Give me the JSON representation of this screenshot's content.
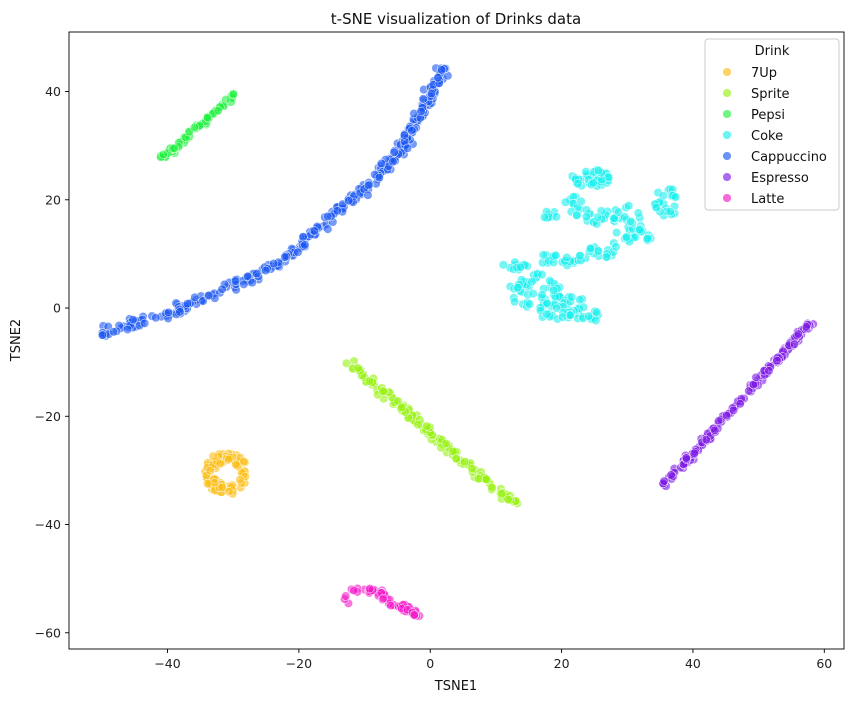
{
  "chart_data": {
    "type": "scatter",
    "title": "t-SNE visualization of Drinks data",
    "xlabel": "TSNE1",
    "ylabel": "TSNE2",
    "xlim": [
      -55,
      63
    ],
    "ylim": [
      -63,
      51
    ],
    "xticks": [
      -40,
      -20,
      0,
      20,
      40,
      60
    ],
    "yticks": [
      -60,
      -40,
      -20,
      0,
      20,
      40
    ],
    "grid": false,
    "legend": {
      "title": "Drink",
      "placement": "top-right"
    },
    "series": [
      {
        "name": "7Up",
        "color": "#fbbc13",
        "shape": "ring",
        "center": [
          -31,
          -30.5
        ],
        "radius": [
          3.2,
          3.8
        ],
        "count": 90
      },
      {
        "name": "Sprite",
        "color": "#96f10f",
        "shape": "line",
        "from": [
          -12,
          -10.5
        ],
        "to": [
          13,
          -36.5
        ],
        "spread": 0.7,
        "count": 150
      },
      {
        "name": "Pepsi",
        "color": "#1ef23d",
        "shape": "line",
        "from": [
          -41,
          27.5
        ],
        "to": [
          -29.5,
          39.5
        ],
        "spread": 0.5,
        "count": 70
      },
      {
        "name": "Coke",
        "color": "#19f0ee",
        "shape": "blobs",
        "clusters": [
          {
            "center": [
              24.5,
              24
            ],
            "rx": 3.0,
            "ry": 1.6,
            "count": 35
          },
          {
            "center": [
              22,
              19
            ],
            "rx": 1.6,
            "ry": 2.2,
            "count": 12
          },
          {
            "center": [
              18,
              17
            ],
            "rx": 1.8,
            "ry": 1.0,
            "count": 10
          },
          {
            "center": [
              26,
              17
            ],
            "rx": 3.2,
            "ry": 1.6,
            "count": 20
          },
          {
            "center": [
              30,
              15
            ],
            "rx": 2.4,
            "ry": 4.0,
            "count": 20
          },
          {
            "center": [
              36,
              19.5
            ],
            "rx": 1.8,
            "ry": 2.8,
            "count": 24
          },
          {
            "center": [
              32,
              13
            ],
            "rx": 2.2,
            "ry": 1.6,
            "count": 14
          },
          {
            "center": [
              13,
              8
            ],
            "rx": 2.0,
            "ry": 1.0,
            "count": 12
          },
          {
            "center": [
              20,
              9
            ],
            "rx": 4.0,
            "ry": 1.5,
            "count": 24
          },
          {
            "center": [
              26,
              11
            ],
            "rx": 2.6,
            "ry": 1.8,
            "count": 16
          },
          {
            "center": [
              16,
              3
            ],
            "rx": 4.0,
            "ry": 3.6,
            "count": 55
          },
          {
            "center": [
              22,
              0
            ],
            "rx": 2.6,
            "ry": 2.2,
            "count": 20
          },
          {
            "center": [
              24,
              -1.5
            ],
            "rx": 1.8,
            "ry": 1.2,
            "count": 10
          },
          {
            "center": [
              19,
              -1
            ],
            "rx": 2.5,
            "ry": 1.2,
            "count": 14
          }
        ]
      },
      {
        "name": "Cappuccino",
        "color": "#1b57f2",
        "shape": "curve",
        "path": [
          [
            -50,
            -4.5
          ],
          [
            -40,
            -1
          ],
          [
            -30,
            4
          ],
          [
            -22,
            9
          ],
          [
            -16,
            16
          ],
          [
            -9,
            23
          ],
          [
            -4,
            30
          ],
          [
            -1,
            37
          ],
          [
            2,
            44.5
          ]
        ],
        "spread": 0.9,
        "count": 330
      },
      {
        "name": "Espresso",
        "color": "#7e1ae6",
        "shape": "line",
        "from": [
          35.5,
          -33
        ],
        "to": [
          58,
          -2.5
        ],
        "spread": 0.5,
        "count": 180
      },
      {
        "name": "Latte",
        "color": "#f317c8",
        "shape": "curve",
        "path": [
          [
            -13.5,
            -54
          ],
          [
            -11,
            -52
          ],
          [
            -8,
            -52.5
          ],
          [
            -6,
            -54.5
          ],
          [
            -3.5,
            -55.5
          ],
          [
            -2,
            -57
          ]
        ],
        "spread": 0.6,
        "count": 60
      }
    ]
  }
}
